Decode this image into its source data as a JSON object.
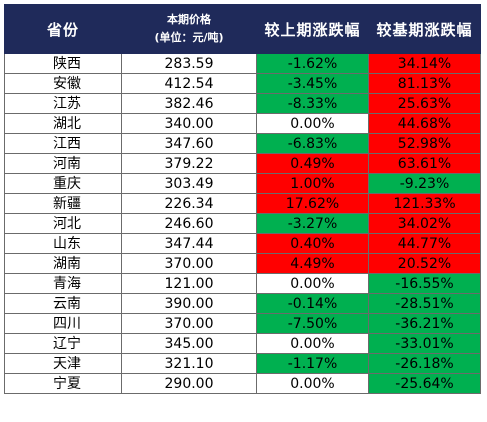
{
  "header": {
    "province": "省份",
    "price_line1": "本期价格",
    "price_line2": "(单位：元/吨)",
    "mom": "较上期涨跌幅",
    "yoy": "较基期涨跌幅"
  },
  "colors": {
    "header_bg": "#1f2a5a",
    "increase": "#ff0000",
    "decrease": "#00b050",
    "unchanged": "#ffffff"
  },
  "rows": [
    {
      "province": "陕西",
      "price": "283.59",
      "mom": "-1.62%",
      "mom_dir": "down",
      "yoy": "34.14%",
      "yoy_dir": "up"
    },
    {
      "province": "安徽",
      "price": "412.54",
      "mom": "-3.45%",
      "mom_dir": "down",
      "yoy": "81.13%",
      "yoy_dir": "up"
    },
    {
      "province": "江苏",
      "price": "382.46",
      "mom": "-8.33%",
      "mom_dir": "down",
      "yoy": "25.63%",
      "yoy_dir": "up"
    },
    {
      "province": "湖北",
      "price": "340.00",
      "mom": "0.00%",
      "mom_dir": "flat",
      "yoy": "44.68%",
      "yoy_dir": "up"
    },
    {
      "province": "江西",
      "price": "347.60",
      "mom": "-6.83%",
      "mom_dir": "down",
      "yoy": "52.98%",
      "yoy_dir": "up"
    },
    {
      "province": "河南",
      "price": "379.22",
      "mom": "0.49%",
      "mom_dir": "up",
      "yoy": "63.61%",
      "yoy_dir": "up"
    },
    {
      "province": "重庆",
      "price": "303.49",
      "mom": "1.00%",
      "mom_dir": "up",
      "yoy": "-9.23%",
      "yoy_dir": "down"
    },
    {
      "province": "新疆",
      "price": "226.34",
      "mom": "17.62%",
      "mom_dir": "up",
      "yoy": "121.33%",
      "yoy_dir": "up"
    },
    {
      "province": "河北",
      "price": "246.60",
      "mom": "-3.27%",
      "mom_dir": "down",
      "yoy": "34.02%",
      "yoy_dir": "up"
    },
    {
      "province": "山东",
      "price": "347.44",
      "mom": "0.40%",
      "mom_dir": "up",
      "yoy": "44.77%",
      "yoy_dir": "up"
    },
    {
      "province": "湖南",
      "price": "370.00",
      "mom": "4.49%",
      "mom_dir": "up",
      "yoy": "20.52%",
      "yoy_dir": "up"
    },
    {
      "province": "青海",
      "price": "121.00",
      "mom": "0.00%",
      "mom_dir": "flat",
      "yoy": "-16.55%",
      "yoy_dir": "down"
    },
    {
      "province": "云南",
      "price": "390.00",
      "mom": "-0.14%",
      "mom_dir": "down",
      "yoy": "-28.51%",
      "yoy_dir": "down"
    },
    {
      "province": "四川",
      "price": "370.00",
      "mom": "-7.50%",
      "mom_dir": "down",
      "yoy": "-36.21%",
      "yoy_dir": "down"
    },
    {
      "province": "辽宁",
      "price": "345.00",
      "mom": "0.00%",
      "mom_dir": "flat",
      "yoy": "-33.01%",
      "yoy_dir": "down"
    },
    {
      "province": "天津",
      "price": "321.10",
      "mom": "-1.17%",
      "mom_dir": "down",
      "yoy": "-26.18%",
      "yoy_dir": "down"
    },
    {
      "province": "宁夏",
      "price": "290.00",
      "mom": "0.00%",
      "mom_dir": "flat",
      "yoy": "-25.64%",
      "yoy_dir": "down"
    }
  ]
}
